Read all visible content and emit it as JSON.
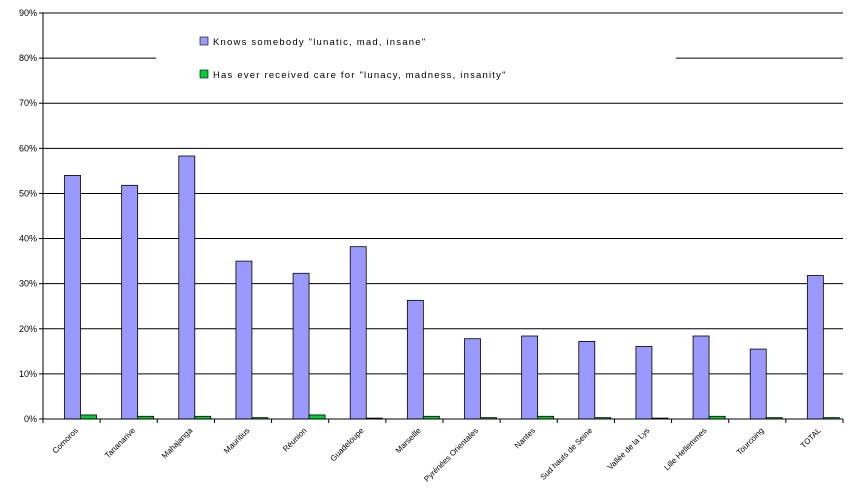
{
  "chart_data": {
    "type": "bar",
    "categories": [
      "Comoros",
      "Tananarive",
      "Mahajanga",
      "Mauritius",
      "Réunion",
      "Guadeloupe",
      "Marseille",
      "Pyrénées Orientales",
      "Nantes",
      "Sud hauts de Seine",
      "Vallée de la Lys",
      "Lille Hellemmes",
      "Tourcoing",
      "TOTAL"
    ],
    "series": [
      {
        "name": "Knows somebody \"lunatic, mad, insane\"",
        "color": "#9999ff",
        "values": [
          54.0,
          51.8,
          58.3,
          35.0,
          32.3,
          38.2,
          26.3,
          17.8,
          18.4,
          17.2,
          16.1,
          18.4,
          15.5,
          31.8
        ]
      },
      {
        "name": "Has ever received care for \"lunacy, madness, insanity\"",
        "color": "#00cc33",
        "values": [
          0.9,
          0.6,
          0.6,
          0.3,
          0.9,
          0.2,
          0.6,
          0.3,
          0.6,
          0.3,
          0.2,
          0.6,
          0.3,
          0.3
        ]
      }
    ],
    "ylim": [
      0,
      90
    ],
    "yticks": [
      "0%",
      "10%",
      "20%",
      "30%",
      "40%",
      "50%",
      "60%",
      "70%",
      "80%",
      "90%"
    ],
    "grid": true,
    "legend_position": "top-center"
  }
}
